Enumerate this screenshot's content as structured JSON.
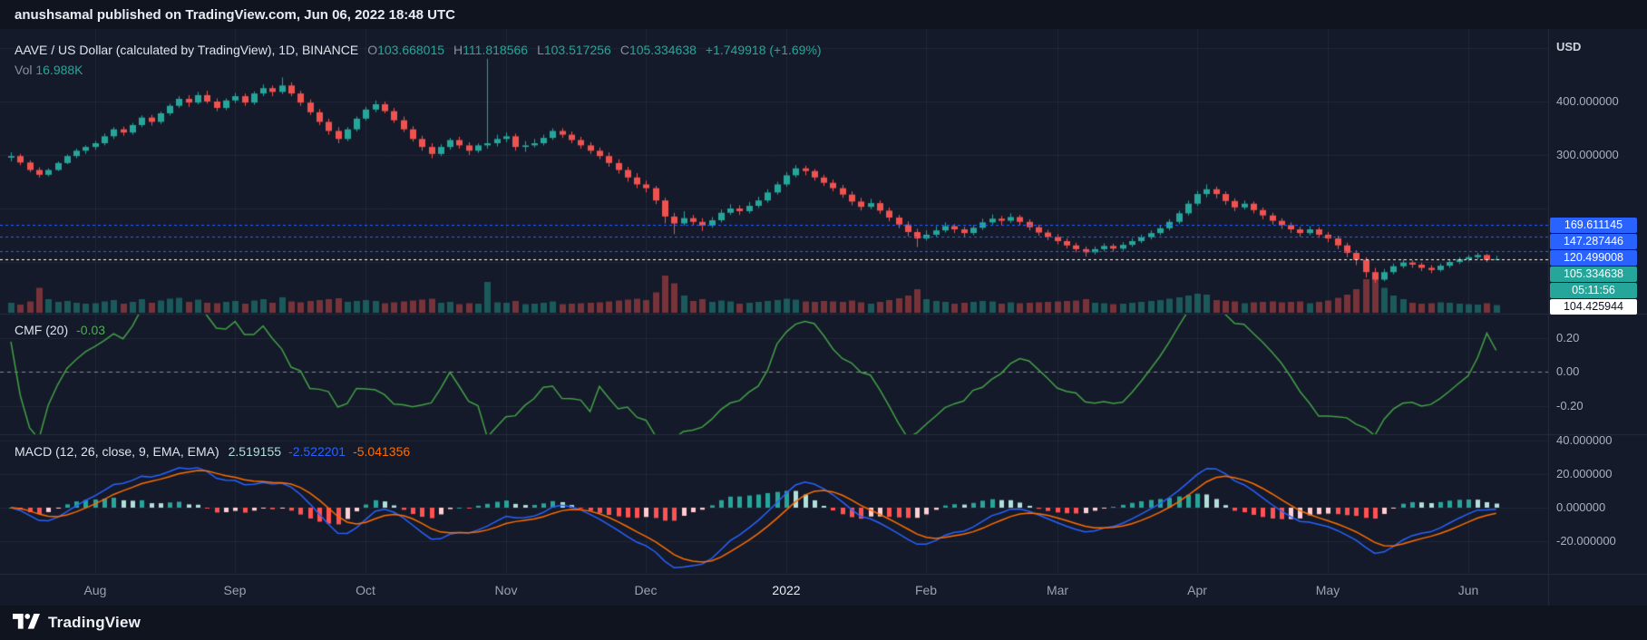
{
  "header": {
    "attribution": "anushsamal published on TradingView.com, Jun 06, 2022 18:48 UTC"
  },
  "footer": {
    "brand": "TradingView"
  },
  "legend": {
    "title": "AAVE / US Dollar (calculated by TradingView), 1D, BINANCE",
    "ohlc": [
      {
        "k": "O",
        "v": "103.668015"
      },
      {
        "k": "H",
        "v": "111.818566"
      },
      {
        "k": "L",
        "v": "103.517256"
      },
      {
        "k": "C",
        "v": "105.334638"
      }
    ],
    "change": "+1.749918 (+1.69%)",
    "vol_label": "Vol",
    "vol_value": "16.988K"
  },
  "price_scale": {
    "currency_label": "USD",
    "ticks": [
      {
        "label": "400.000000",
        "v": 400
      },
      {
        "label": "300.000000",
        "v": 300
      }
    ]
  },
  "cmf": {
    "title": "CMF (20)",
    "value": "-0.03",
    "ticks": [
      {
        "label": "0.20",
        "v": 0.2
      },
      {
        "label": "0.00",
        "v": 0
      },
      {
        "label": "-0.20",
        "v": -0.2
      }
    ]
  },
  "macd": {
    "title": "MACD (12, 26, close, 9, EMA, EMA)",
    "histogram_value": "2.519155",
    "macd_value": "-2.522201",
    "signal_value": "-5.041356",
    "ticks": [
      {
        "label": "40.000000",
        "v": 40
      },
      {
        "label": "20.000000",
        "v": 20
      },
      {
        "label": "0.000000",
        "v": 0
      },
      {
        "label": "-20.000000",
        "v": -20
      }
    ]
  },
  "colors": {
    "up": "#26a69a",
    "down": "#ef5350",
    "macd_line": "#2962ff",
    "signal_line": "#ff6d00",
    "cmf_line": "#43a047",
    "level_blue": "#2962ff",
    "background": "#141a29"
  },
  "chart_data": {
    "type": "candlestick",
    "symbol": "AAVE / US Dollar",
    "exchange": "BINANCE",
    "interval": "1D",
    "title": "AAVE / US Dollar (calculated by TradingView), 1D, BINANCE",
    "price_axis": {
      "visible_ticks": [
        400,
        300
      ],
      "approx_high": 480,
      "approx_low": 61,
      "last_close": 105.334638
    },
    "volume_unit": "K",
    "last_volume": 16.988,
    "months": [
      {
        "label": "Aug",
        "i": 9
      },
      {
        "label": "Sep",
        "i": 24
      },
      {
        "label": "Oct",
        "i": 38
      },
      {
        "label": "Nov",
        "i": 53
      },
      {
        "label": "Dec",
        "i": 68
      },
      {
        "label": "2022",
        "i": 83,
        "year": true
      },
      {
        "label": "Feb",
        "i": 98
      },
      {
        "label": "Mar",
        "i": 112
      },
      {
        "label": "Apr",
        "i": 127
      },
      {
        "label": "May",
        "i": 141
      },
      {
        "label": "Jun",
        "i": 156
      }
    ],
    "levels": [
      {
        "label": "169.611145",
        "price": 169.611145,
        "bg": "#2962ff",
        "fg": "#ffffff"
      },
      {
        "label": "147.287446",
        "price": 147.287446,
        "bg": "#2962ff",
        "fg": "#ffffff"
      },
      {
        "label": "120.499008",
        "price": 120.499008,
        "bg": "#2962ff",
        "fg": "#ffffff"
      },
      {
        "label": "105.334638",
        "price": 105.334638,
        "bg": "#26a69a",
        "fg": "#ffffff",
        "countdown": "05:11:56"
      },
      {
        "label": "104.425944",
        "price": 104.425944,
        "bg": "#ffffff",
        "fg": "#0e121d"
      }
    ],
    "indicators": [
      {
        "name": "CMF",
        "params": [
          20
        ],
        "last_value": -0.03,
        "axis_ticks": [
          0.2,
          0,
          -0.2
        ]
      },
      {
        "name": "MACD",
        "params": [
          12,
          26,
          "close",
          9,
          "EMA",
          "EMA"
        ],
        "last_histogram": 2.519155,
        "last_macd": -2.522201,
        "last_signal": -5.041356,
        "axis_ticks": [
          40,
          20,
          0,
          -20
        ]
      }
    ],
    "candles": [
      [
        295,
        305,
        288,
        298,
        22
      ],
      [
        298,
        302,
        281,
        286,
        18
      ],
      [
        286,
        290,
        268,
        272,
        25
      ],
      [
        272,
        277,
        258,
        263,
        55
      ],
      [
        263,
        275,
        260,
        272,
        30
      ],
      [
        272,
        288,
        270,
        285,
        24
      ],
      [
        285,
        301,
        283,
        298,
        26
      ],
      [
        298,
        312,
        294,
        308,
        22
      ],
      [
        308,
        318,
        302,
        315,
        20
      ],
      [
        315,
        326,
        310,
        322,
        21
      ],
      [
        322,
        340,
        318,
        335,
        25
      ],
      [
        335,
        352,
        330,
        348,
        28
      ],
      [
        348,
        353,
        336,
        342,
        20
      ],
      [
        342,
        360,
        338,
        356,
        24
      ],
      [
        356,
        374,
        352,
        370,
        30
      ],
      [
        370,
        375,
        355,
        362,
        22
      ],
      [
        362,
        381,
        358,
        378,
        27
      ],
      [
        378,
        396,
        374,
        392,
        31
      ],
      [
        392,
        410,
        388,
        405,
        33
      ],
      [
        405,
        412,
        390,
        398,
        24
      ],
      [
        398,
        418,
        395,
        412,
        29
      ],
      [
        412,
        420,
        396,
        400,
        22
      ],
      [
        400,
        406,
        382,
        388,
        21
      ],
      [
        388,
        406,
        384,
        402,
        24
      ],
      [
        402,
        416,
        397,
        410,
        26
      ],
      [
        410,
        415,
        392,
        398,
        20
      ],
      [
        398,
        419,
        394,
        415,
        27
      ],
      [
        415,
        432,
        410,
        425,
        30
      ],
      [
        425,
        430,
        410,
        418,
        22
      ],
      [
        418,
        445,
        414,
        430,
        34
      ],
      [
        430,
        436,
        410,
        415,
        25
      ],
      [
        415,
        420,
        392,
        398,
        23
      ],
      [
        398,
        404,
        375,
        380,
        26
      ],
      [
        380,
        386,
        356,
        362,
        28
      ],
      [
        362,
        368,
        338,
        345,
        30
      ],
      [
        345,
        352,
        322,
        330,
        32
      ],
      [
        330,
        352,
        326,
        348,
        24
      ],
      [
        348,
        372,
        344,
        368,
        26
      ],
      [
        368,
        390,
        364,
        385,
        28
      ],
      [
        385,
        402,
        380,
        395,
        26
      ],
      [
        395,
        400,
        378,
        382,
        21
      ],
      [
        382,
        388,
        360,
        365,
        23
      ],
      [
        365,
        372,
        343,
        348,
        25
      ],
      [
        348,
        354,
        325,
        330,
        27
      ],
      [
        330,
        336,
        308,
        315,
        29
      ],
      [
        315,
        322,
        294,
        302,
        31
      ],
      [
        302,
        320,
        298,
        315,
        22
      ],
      [
        315,
        332,
        310,
        328,
        24
      ],
      [
        328,
        334,
        312,
        318,
        19
      ],
      [
        318,
        324,
        300,
        308,
        21
      ],
      [
        308,
        322,
        304,
        318,
        20
      ],
      [
        318,
        480,
        312,
        322,
        68
      ],
      [
        322,
        338,
        316,
        330,
        23
      ],
      [
        330,
        342,
        324,
        335,
        22
      ],
      [
        335,
        340,
        308,
        315,
        26
      ],
      [
        315,
        326,
        306,
        318,
        19
      ],
      [
        318,
        330,
        314,
        322,
        20
      ],
      [
        322,
        338,
        318,
        332,
        22
      ],
      [
        332,
        350,
        328,
        345,
        25
      ],
      [
        345,
        350,
        332,
        338,
        19
      ],
      [
        338,
        344,
        322,
        328,
        20
      ],
      [
        328,
        334,
        312,
        318,
        21
      ],
      [
        318,
        324,
        302,
        308,
        22
      ],
      [
        308,
        314,
        292,
        298,
        23
      ],
      [
        298,
        305,
        278,
        285,
        25
      ],
      [
        285,
        292,
        265,
        272,
        27
      ],
      [
        272,
        278,
        250,
        258,
        29
      ],
      [
        258,
        266,
        238,
        245,
        31
      ],
      [
        245,
        252,
        230,
        238,
        28
      ],
      [
        238,
        242,
        208,
        215,
        45
      ],
      [
        215,
        220,
        172,
        185,
        82
      ],
      [
        185,
        192,
        152,
        172,
        65
      ],
      [
        172,
        195,
        168,
        182,
        38
      ],
      [
        182,
        188,
        168,
        175,
        26
      ],
      [
        175,
        182,
        158,
        168,
        30
      ],
      [
        168,
        184,
        164,
        178,
        24
      ],
      [
        178,
        198,
        174,
        192,
        27
      ],
      [
        192,
        208,
        188,
        200,
        25
      ],
      [
        200,
        206,
        188,
        195,
        20
      ],
      [
        195,
        212,
        191,
        205,
        22
      ],
      [
        205,
        222,
        201,
        215,
        24
      ],
      [
        215,
        236,
        211,
        230,
        26
      ],
      [
        230,
        250,
        226,
        245,
        28
      ],
      [
        245,
        268,
        241,
        262,
        31
      ],
      [
        262,
        281,
        258,
        275,
        29
      ],
      [
        275,
        280,
        262,
        270,
        25
      ],
      [
        270,
        274,
        252,
        258,
        24
      ],
      [
        258,
        263,
        242,
        248,
        26
      ],
      [
        248,
        254,
        232,
        238,
        25
      ],
      [
        238,
        244,
        220,
        226,
        24
      ],
      [
        226,
        232,
        206,
        213,
        27
      ],
      [
        213,
        220,
        196,
        203,
        23
      ],
      [
        203,
        218,
        199,
        210,
        20
      ],
      [
        210,
        215,
        190,
        196,
        24
      ],
      [
        196,
        202,
        176,
        183,
        28
      ],
      [
        183,
        188,
        163,
        170,
        32
      ],
      [
        170,
        176,
        148,
        156,
        38
      ],
      [
        156,
        162,
        128,
        144,
        52
      ],
      [
        144,
        159,
        140,
        151,
        30
      ],
      [
        151,
        167,
        147,
        159,
        26
      ],
      [
        159,
        174,
        155,
        167,
        24
      ],
      [
        167,
        171,
        154,
        161,
        20
      ],
      [
        161,
        166,
        147,
        154,
        22
      ],
      [
        154,
        169,
        150,
        164,
        24
      ],
      [
        164,
        181,
        160,
        174,
        26
      ],
      [
        174,
        189,
        170,
        181,
        25
      ],
      [
        181,
        186,
        169,
        177,
        20
      ],
      [
        177,
        191,
        173,
        184,
        23
      ],
      [
        184,
        188,
        169,
        175,
        21
      ],
      [
        175,
        180,
        159,
        165,
        22
      ],
      [
        165,
        170,
        149,
        155,
        23
      ],
      [
        155,
        160,
        141,
        147,
        24
      ],
      [
        147,
        152,
        133,
        139,
        25
      ],
      [
        139,
        144,
        125,
        131,
        26
      ],
      [
        131,
        136,
        118,
        124,
        27
      ],
      [
        124,
        129,
        110,
        118,
        30
      ],
      [
        118,
        129,
        114,
        124,
        22
      ],
      [
        124,
        135,
        120,
        130,
        21
      ],
      [
        130,
        134,
        119,
        125,
        19
      ],
      [
        125,
        137,
        121,
        132,
        20
      ],
      [
        132,
        144,
        128,
        139,
        22
      ],
      [
        139,
        151,
        135,
        146,
        24
      ],
      [
        146,
        159,
        142,
        154,
        26
      ],
      [
        154,
        168,
        150,
        163,
        28
      ],
      [
        163,
        180,
        159,
        175,
        31
      ],
      [
        175,
        196,
        171,
        191,
        34
      ],
      [
        191,
        215,
        187,
        209,
        38
      ],
      [
        209,
        233,
        205,
        227,
        42
      ],
      [
        227,
        245,
        221,
        236,
        40
      ],
      [
        236,
        241,
        219,
        227,
        28
      ],
      [
        227,
        232,
        207,
        214,
        26
      ],
      [
        214,
        219,
        195,
        202,
        25
      ],
      [
        202,
        215,
        198,
        209,
        21
      ],
      [
        209,
        213,
        191,
        197,
        23
      ],
      [
        197,
        202,
        180,
        187,
        24
      ],
      [
        187,
        192,
        170,
        177,
        25
      ],
      [
        177,
        182,
        162,
        169,
        23
      ],
      [
        169,
        174,
        154,
        161,
        24
      ],
      [
        161,
        166,
        147,
        154,
        25
      ],
      [
        154,
        167,
        150,
        161,
        21
      ],
      [
        161,
        165,
        145,
        151,
        24
      ],
      [
        151,
        156,
        137,
        144,
        27
      ],
      [
        144,
        149,
        124,
        131,
        33
      ],
      [
        131,
        136,
        109,
        117,
        40
      ],
      [
        117,
        122,
        94,
        104,
        52
      ],
      [
        104,
        109,
        71,
        81,
        74
      ],
      [
        81,
        89,
        61,
        67,
        88
      ],
      [
        67,
        87,
        64,
        81,
        55
      ],
      [
        81,
        97,
        77,
        92,
        38
      ],
      [
        92,
        105,
        88,
        99,
        30
      ],
      [
        99,
        103,
        89,
        95,
        22
      ],
      [
        95,
        99,
        83,
        89,
        20
      ],
      [
        89,
        94,
        79,
        85,
        21
      ],
      [
        85,
        97,
        82,
        93,
        23
      ],
      [
        93,
        105,
        89,
        100,
        22
      ],
      [
        100,
        109,
        96,
        105,
        20
      ],
      [
        105,
        113,
        101,
        109,
        19
      ],
      [
        109,
        117,
        105,
        113,
        18
      ],
      [
        113,
        115,
        100,
        103.58,
        21
      ],
      [
        103.668015,
        111.818566,
        103.517256,
        105.334638,
        16.988
      ]
    ]
  }
}
